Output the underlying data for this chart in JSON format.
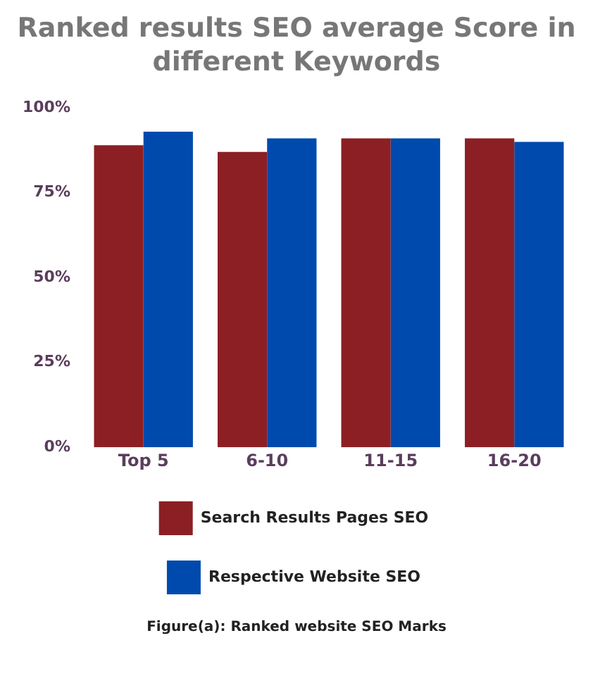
{
  "chart_data": {
    "type": "bar",
    "title": "Ranked results SEO average Score in different Keywords",
    "categories": [
      "Top 5",
      "6-10",
      "11-15",
      "16-20"
    ],
    "series": [
      {
        "name": "Search Results Pages SEO",
        "color": "#8b1f24",
        "values": [
          89,
          87,
          91,
          91
        ]
      },
      {
        "name": "Respective Website SEO",
        "color": "#004aad",
        "values": [
          93,
          91,
          91,
          90
        ]
      }
    ],
    "ylim": [
      0,
      100
    ],
    "yticks": [
      {
        "value": 0,
        "label": "0%"
      },
      {
        "value": 25,
        "label": "25%"
      },
      {
        "value": 50,
        "label": "50%"
      },
      {
        "value": 75,
        "label": "75%"
      },
      {
        "value": 100,
        "label": "100%"
      }
    ],
    "grid": false,
    "legend": "bottom",
    "annotations": [
      "Figure(a): Ranked website SEO Marks"
    ]
  }
}
